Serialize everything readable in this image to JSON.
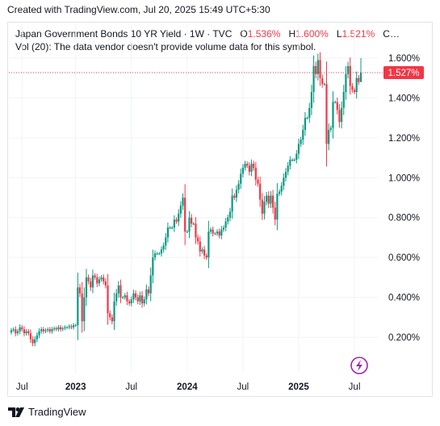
{
  "header": {
    "title": "Created with TradingView.com, Jul 20, 2025 15:49 UTC+5:30"
  },
  "legend": {
    "symbol_line": "Japan Government Bonds 10 YR Yield · 1W · TVC",
    "open_label": "O",
    "open_value": "1.536%",
    "high_label": "H",
    "high_value": "1.600%",
    "low_label": "L",
    "low_value": "1.521%",
    "close_label": "C…",
    "volume_line": "Vol (20): The data vendor doesn't provide volume data for this symbol."
  },
  "price_tag": {
    "value": "1.527%",
    "color": "#f23645"
  },
  "footer": {
    "brand": "TradingView",
    "logo_icon": "tradingview-logo-icon"
  },
  "flash_icon": "lightning-icon",
  "colors": {
    "up": "#089981",
    "down": "#f23645",
    "grid": "#f0f3fa",
    "accent": "#9c27b0"
  },
  "chart_data": {
    "type": "candlestick",
    "symbol": "Japan Government Bonds 10 YR Yield",
    "interval": "1W",
    "y_unit": "%",
    "ylim": [
      0.1,
      1.66
    ],
    "yticks": [
      "1.600%",
      "1.400%",
      "1.200%",
      "1.000%",
      "0.800%",
      "0.600%",
      "0.400%",
      "0.200%"
    ],
    "ytick_values": [
      1.6,
      1.4,
      1.2,
      1.0,
      0.8,
      0.6,
      0.4,
      0.2
    ],
    "xticks": [
      {
        "label": "Jul",
        "index": 5,
        "bold": false
      },
      {
        "label": "2023",
        "index": 30,
        "bold": true
      },
      {
        "label": "Jul",
        "index": 56,
        "bold": false
      },
      {
        "label": "2024",
        "index": 82,
        "bold": true
      },
      {
        "label": "Jul",
        "index": 108,
        "bold": false
      },
      {
        "label": "2025",
        "index": 134,
        "bold": true
      },
      {
        "label": "Jul",
        "index": 160,
        "bold": false
      }
    ],
    "last_value": 1.527,
    "grid": true,
    "series_close": [
      0.235,
      0.24,
      0.22,
      0.23,
      0.25,
      0.24,
      0.22,
      0.23,
      0.22,
      0.19,
      0.17,
      0.19,
      0.21,
      0.23,
      0.24,
      0.23,
      0.235,
      0.24,
      0.23,
      0.24,
      0.245,
      0.24,
      0.25,
      0.24,
      0.245,
      0.25,
      0.25,
      0.255,
      0.25,
      0.26,
      0.26,
      0.45,
      0.42,
      0.28,
      0.4,
      0.5,
      0.48,
      0.45,
      0.51,
      0.5,
      0.47,
      0.49,
      0.5,
      0.48,
      0.46,
      0.32,
      0.3,
      0.28,
      0.38,
      0.42,
      0.46,
      0.4,
      0.4,
      0.41,
      0.38,
      0.37,
      0.39,
      0.42,
      0.4,
      0.38,
      0.41,
      0.37,
      0.39,
      0.44,
      0.42,
      0.51,
      0.6,
      0.62,
      0.62,
      0.62,
      0.64,
      0.66,
      0.7,
      0.75,
      0.75,
      0.75,
      0.79,
      0.78,
      0.82,
      0.86,
      0.9,
      0.73,
      0.73,
      0.8,
      0.77,
      0.77,
      0.7,
      0.68,
      0.63,
      0.64,
      0.61,
      0.6,
      0.73,
      0.74,
      0.72,
      0.72,
      0.73,
      0.71,
      0.74,
      0.75,
      0.78,
      0.8,
      0.83,
      0.91,
      0.9,
      0.94,
      0.97,
      1.02,
      1.05,
      1.07,
      1.06,
      1.03,
      1.07,
      1.05,
      0.99,
      0.97,
      0.89,
      0.82,
      0.88,
      0.91,
      0.87,
      0.91,
      0.85,
      0.79,
      0.92,
      0.93,
      0.96,
      1.0,
      1.03,
      1.06,
      1.09,
      1.09,
      1.09,
      1.12,
      1.17,
      1.19,
      1.24,
      1.3,
      1.3,
      1.35,
      1.43,
      1.56,
      1.52,
      1.59,
      1.5,
      1.47,
      1.47,
      1.17,
      1.24,
      1.25,
      1.38,
      1.38,
      1.34,
      1.28,
      1.35,
      1.43,
      1.52,
      1.56,
      1.46,
      1.44,
      1.43,
      1.5,
      1.48,
      1.527
    ]
  }
}
